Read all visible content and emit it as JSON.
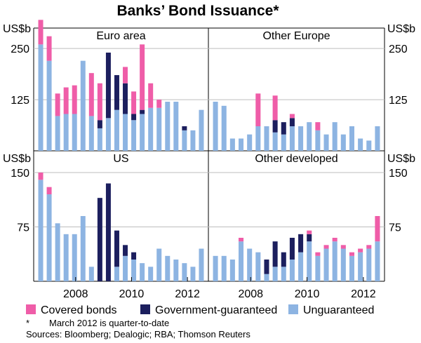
{
  "colors": {
    "covered": "#ef5da8",
    "guaranteed": "#1c1f5e",
    "unguaranteed": "#8db4e2"
  },
  "chart_data": {
    "title": "Banks’ Bond Issuance*",
    "type": "bar",
    "stacked": true,
    "unit": "US$b",
    "series_names": [
      "Covered bonds",
      "Government-guaranteed",
      "Unguaranteed"
    ],
    "x_ticks": [
      "2008",
      "2010",
      "2012"
    ],
    "footnote_marker": "*",
    "footnote_text": "March 2012 is quarter-to-date",
    "sources": "Sources: Bloomberg; Dealogic; RBA; Thomson Reuters",
    "panels": [
      {
        "name": "Euro area",
        "ylim": [
          0,
          300
        ],
        "yticks": [
          "125",
          "250"
        ],
        "data": [
          [
            260,
            0,
            60
          ],
          [
            220,
            0,
            60
          ],
          [
            85,
            0,
            55
          ],
          [
            90,
            0,
            65
          ],
          [
            90,
            0,
            70
          ],
          [
            220,
            0,
            0
          ],
          [
            85,
            0,
            105
          ],
          [
            55,
            20,
            90
          ],
          [
            80,
            160,
            0
          ],
          [
            100,
            85,
            0
          ],
          [
            90,
            75,
            40
          ],
          [
            75,
            15,
            55
          ],
          [
            90,
            10,
            160
          ],
          [
            105,
            0,
            60
          ],
          [
            105,
            0,
            20
          ],
          [
            120,
            0,
            0
          ],
          [
            120,
            0,
            0
          ],
          [
            50,
            10,
            0
          ],
          [
            50,
            0,
            0
          ],
          [
            100,
            0,
            0
          ]
        ]
      },
      {
        "name": "Other Europe",
        "ylim": [
          0,
          300
        ],
        "yticks": [
          "125",
          "250"
        ],
        "data": [
          [
            120,
            0,
            0
          ],
          [
            110,
            0,
            0
          ],
          [
            30,
            0,
            0
          ],
          [
            30,
            0,
            0
          ],
          [
            40,
            0,
            0
          ],
          [
            60,
            0,
            80
          ],
          [
            60,
            0,
            0
          ],
          [
            45,
            30,
            60
          ],
          [
            40,
            30,
            0
          ],
          [
            60,
            20,
            10
          ],
          [
            60,
            0,
            0
          ],
          [
            70,
            0,
            0
          ],
          [
            50,
            0,
            20
          ],
          [
            40,
            0,
            0
          ],
          [
            70,
            0,
            0
          ],
          [
            40,
            0,
            0
          ],
          [
            60,
            0,
            0
          ],
          [
            30,
            0,
            0
          ],
          [
            25,
            0,
            0
          ],
          [
            60,
            0,
            0
          ]
        ]
      },
      {
        "name": "US",
        "ylim": [
          0,
          180
        ],
        "yticks": [
          "75",
          "150"
        ],
        "data": [
          [
            140,
            0,
            10
          ],
          [
            120,
            0,
            10
          ],
          [
            80,
            0,
            0
          ],
          [
            65,
            0,
            0
          ],
          [
            65,
            0,
            0
          ],
          [
            90,
            0,
            0
          ],
          [
            20,
            0,
            0
          ],
          [
            0,
            115,
            0
          ],
          [
            0,
            135,
            0
          ],
          [
            20,
            50,
            0
          ],
          [
            35,
            15,
            0
          ],
          [
            30,
            10,
            0
          ],
          [
            25,
            0,
            0
          ],
          [
            20,
            0,
            0
          ],
          [
            45,
            0,
            0
          ],
          [
            35,
            0,
            0
          ],
          [
            30,
            0,
            0
          ],
          [
            25,
            0,
            0
          ],
          [
            20,
            0,
            0
          ],
          [
            45,
            0,
            0
          ]
        ]
      },
      {
        "name": "Other developed",
        "ylim": [
          0,
          180
        ],
        "yticks": [
          "75",
          "150"
        ],
        "data": [
          [
            35,
            0,
            0
          ],
          [
            35,
            0,
            0
          ],
          [
            30,
            0,
            0
          ],
          [
            55,
            0,
            5
          ],
          [
            45,
            0,
            0
          ],
          [
            40,
            0,
            0
          ],
          [
            10,
            20,
            0
          ],
          [
            20,
            35,
            0
          ],
          [
            20,
            20,
            0
          ],
          [
            30,
            30,
            0
          ],
          [
            40,
            25,
            0
          ],
          [
            55,
            10,
            5
          ],
          [
            35,
            0,
            5
          ],
          [
            45,
            0,
            5
          ],
          [
            55,
            0,
            5
          ],
          [
            45,
            0,
            5
          ],
          [
            35,
            0,
            5
          ],
          [
            40,
            0,
            5
          ],
          [
            45,
            0,
            5
          ],
          [
            55,
            0,
            35
          ]
        ]
      }
    ]
  }
}
